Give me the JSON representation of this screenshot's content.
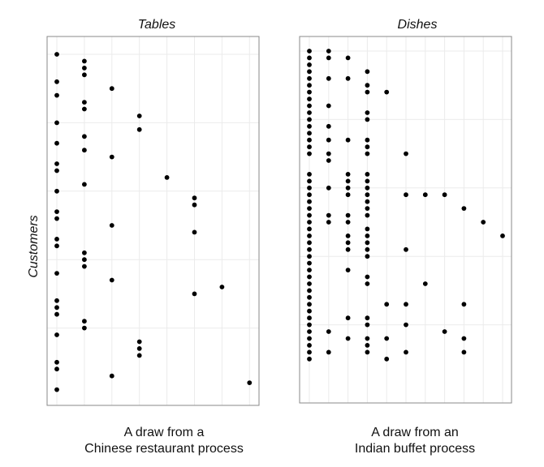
{
  "y_label": "Customers",
  "chart_data": [
    {
      "type": "scatter",
      "title": "Tables",
      "caption": [
        "A draw from a",
        "Chinese restaurant process"
      ],
      "ylabel": "Customers",
      "grid": true,
      "xlim": [
        0.5,
        8.5
      ],
      "ylim": [
        0.5,
        50.5
      ],
      "points": [
        [
          1,
          1
        ],
        [
          2,
          2
        ],
        [
          2,
          3
        ],
        [
          2,
          4
        ],
        [
          1,
          5
        ],
        [
          3,
          6
        ],
        [
          1,
          7
        ],
        [
          2,
          8
        ],
        [
          2,
          9
        ],
        [
          4,
          10
        ],
        [
          1,
          11
        ],
        [
          4,
          12
        ],
        [
          2,
          13
        ],
        [
          1,
          14
        ],
        [
          2,
          15
        ],
        [
          3,
          16
        ],
        [
          1,
          17
        ],
        [
          1,
          18
        ],
        [
          5,
          19
        ],
        [
          2,
          20
        ],
        [
          1,
          21
        ],
        [
          6,
          22
        ],
        [
          6,
          23
        ],
        [
          1,
          24
        ],
        [
          1,
          25
        ],
        [
          3,
          26
        ],
        [
          6,
          27
        ],
        [
          1,
          28
        ],
        [
          1,
          29
        ],
        [
          2,
          30
        ],
        [
          2,
          31
        ],
        [
          2,
          32
        ],
        [
          1,
          33
        ],
        [
          3,
          34
        ],
        [
          7,
          35
        ],
        [
          6,
          36
        ],
        [
          1,
          37
        ],
        [
          1,
          38
        ],
        [
          1,
          39
        ],
        [
          2,
          40
        ],
        [
          2,
          41
        ],
        [
          1,
          42
        ],
        [
          4,
          43
        ],
        [
          4,
          44
        ],
        [
          4,
          45
        ],
        [
          1,
          46
        ],
        [
          1,
          47
        ],
        [
          3,
          48
        ],
        [
          8,
          49
        ],
        [
          1,
          50
        ]
      ]
    },
    {
      "type": "scatter",
      "title": "Dishes",
      "caption": [
        "A draw from an",
        "Indian buffet process"
      ],
      "grid": true,
      "xlim": [
        0.5,
        11.5
      ],
      "ylim": [
        0.5,
        50.5
      ],
      "points": [
        [
          1,
          1
        ],
        [
          2,
          1
        ],
        [
          1,
          2
        ],
        [
          2,
          2
        ],
        [
          3,
          2
        ],
        [
          1,
          3
        ],
        [
          1,
          4
        ],
        [
          4,
          4
        ],
        [
          1,
          5
        ],
        [
          2,
          5
        ],
        [
          3,
          5
        ],
        [
          1,
          6
        ],
        [
          4,
          6
        ],
        [
          1,
          7
        ],
        [
          4,
          7
        ],
        [
          5,
          7
        ],
        [
          1,
          8
        ],
        [
          1,
          9
        ],
        [
          2,
          9
        ],
        [
          1,
          10
        ],
        [
          4,
          10
        ],
        [
          1,
          11
        ],
        [
          4,
          11
        ],
        [
          1,
          12
        ],
        [
          2,
          12
        ],
        [
          1,
          13
        ],
        [
          1,
          14
        ],
        [
          2,
          14
        ],
        [
          3,
          14
        ],
        [
          4,
          14
        ],
        [
          1,
          15
        ],
        [
          4,
          15
        ],
        [
          1,
          16
        ],
        [
          2,
          16
        ],
        [
          4,
          16
        ],
        [
          6,
          16
        ],
        [
          2,
          17
        ],
        [
          1,
          19
        ],
        [
          3,
          19
        ],
        [
          4,
          19
        ],
        [
          1,
          20
        ],
        [
          3,
          20
        ],
        [
          4,
          20
        ],
        [
          1,
          21
        ],
        [
          2,
          21
        ],
        [
          3,
          21
        ],
        [
          4,
          21
        ],
        [
          1,
          22
        ],
        [
          3,
          22
        ],
        [
          4,
          22
        ],
        [
          6,
          22
        ],
        [
          7,
          22
        ],
        [
          8,
          22
        ],
        [
          1,
          23
        ],
        [
          4,
          23
        ],
        [
          1,
          24
        ],
        [
          4,
          24
        ],
        [
          9,
          24
        ],
        [
          1,
          25
        ],
        [
          2,
          25
        ],
        [
          3,
          25
        ],
        [
          4,
          25
        ],
        [
          1,
          26
        ],
        [
          2,
          26
        ],
        [
          3,
          26
        ],
        [
          10,
          26
        ],
        [
          1,
          27
        ],
        [
          4,
          27
        ],
        [
          1,
          28
        ],
        [
          3,
          28
        ],
        [
          4,
          28
        ],
        [
          11,
          28
        ],
        [
          1,
          29
        ],
        [
          3,
          29
        ],
        [
          4,
          29
        ],
        [
          1,
          30
        ],
        [
          3,
          30
        ],
        [
          4,
          30
        ],
        [
          6,
          30
        ],
        [
          1,
          31
        ],
        [
          4,
          31
        ],
        [
          1,
          32
        ],
        [
          1,
          33
        ],
        [
          3,
          33
        ],
        [
          1,
          34
        ],
        [
          4,
          34
        ],
        [
          1,
          35
        ],
        [
          4,
          35
        ],
        [
          7,
          35
        ],
        [
          1,
          36
        ],
        [
          1,
          37
        ],
        [
          1,
          38
        ],
        [
          5,
          38
        ],
        [
          6,
          38
        ],
        [
          9,
          38
        ],
        [
          1,
          39
        ],
        [
          1,
          40
        ],
        [
          3,
          40
        ],
        [
          4,
          40
        ],
        [
          1,
          41
        ],
        [
          4,
          41
        ],
        [
          6,
          41
        ],
        [
          1,
          42
        ],
        [
          2,
          42
        ],
        [
          8,
          42
        ],
        [
          1,
          43
        ],
        [
          3,
          43
        ],
        [
          4,
          43
        ],
        [
          5,
          43
        ],
        [
          9,
          43
        ],
        [
          1,
          44
        ],
        [
          4,
          44
        ],
        [
          1,
          45
        ],
        [
          2,
          45
        ],
        [
          4,
          45
        ],
        [
          6,
          45
        ],
        [
          9,
          45
        ],
        [
          1,
          46
        ],
        [
          5,
          46
        ]
      ]
    }
  ]
}
